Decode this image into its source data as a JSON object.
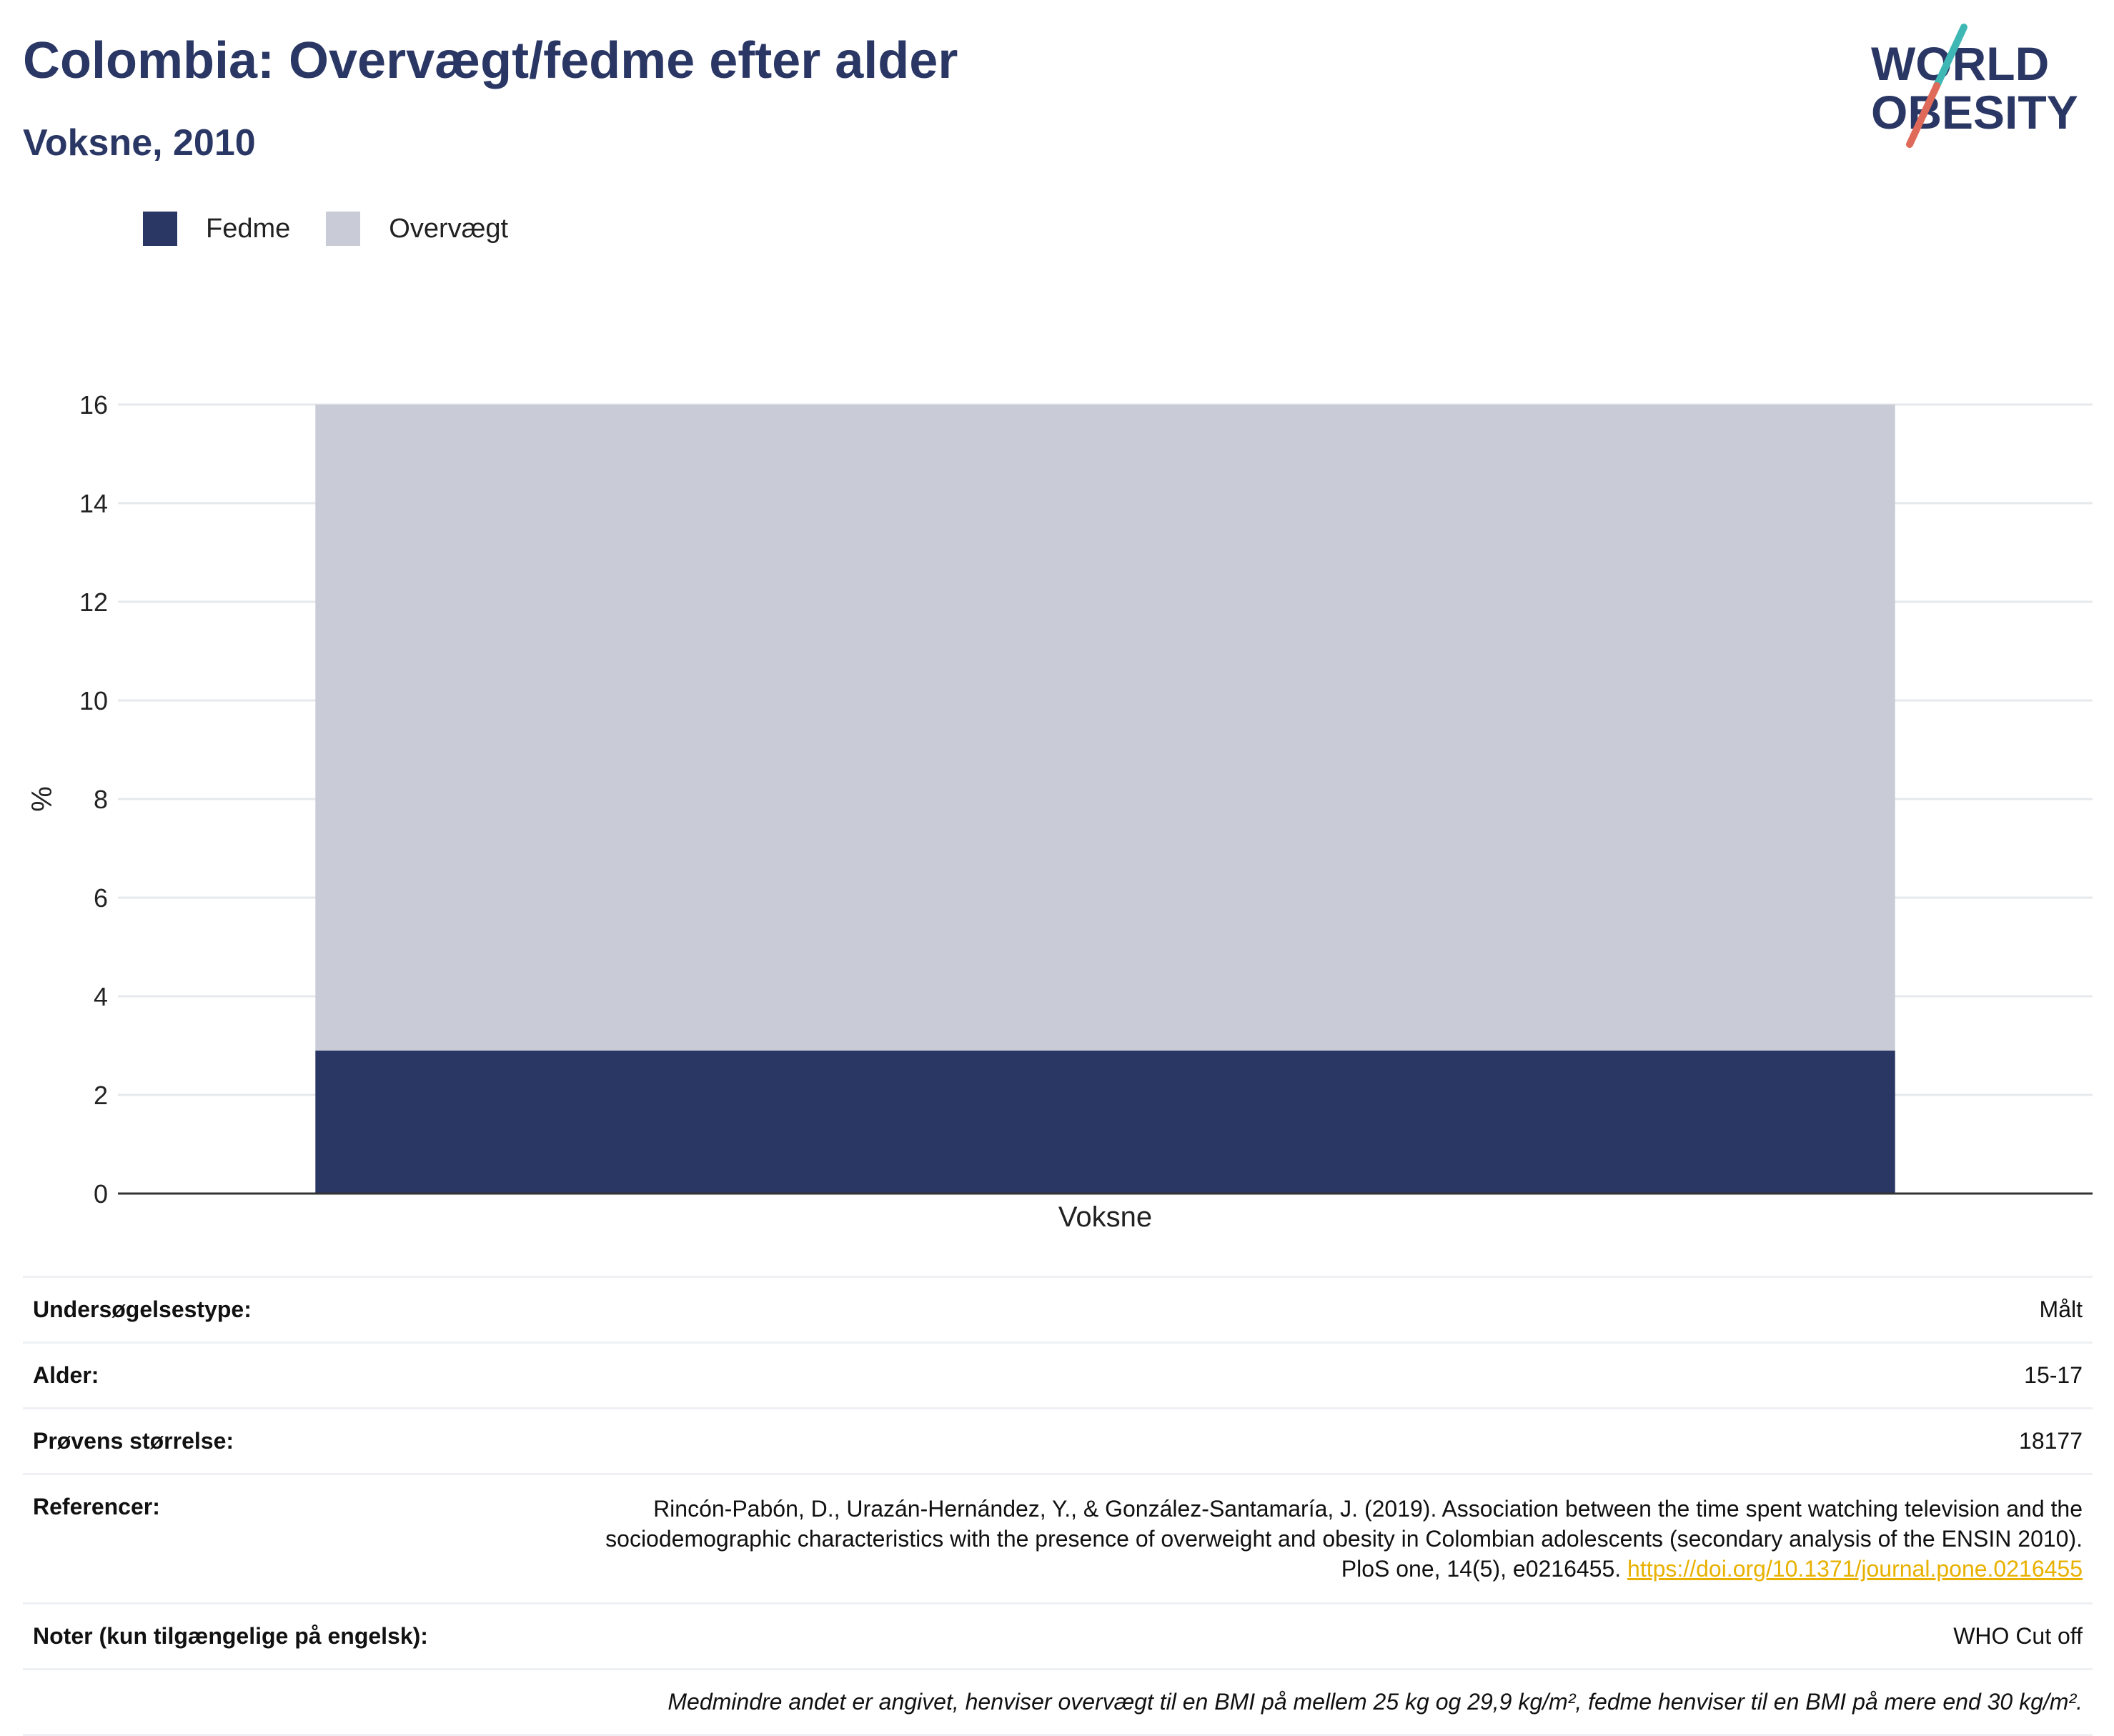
{
  "header": {
    "title": "Colombia: Overvægt/fedme efter alder",
    "subtitle": "Voksne, 2010"
  },
  "logo": {
    "line1": "WORLD",
    "line2": "OBESITY",
    "colors": {
      "text": "#2a3764",
      "slash_top": "#3fb8b5",
      "slash_bottom": "#e06a5a"
    }
  },
  "legend": {
    "items": [
      {
        "label": "Fedme",
        "color": "#2a3764"
      },
      {
        "label": "Overvægt",
        "color": "#c9ccd7"
      }
    ]
  },
  "chart_data": {
    "type": "bar",
    "stacked": true,
    "categories": [
      "Voksne"
    ],
    "series": [
      {
        "name": "Fedme",
        "values": [
          2.9
        ],
        "color": "#2a3764"
      },
      {
        "name": "Overvægt",
        "values": [
          13.1
        ],
        "color": "#c9ccd7"
      }
    ],
    "xlabel": "",
    "ylabel": "%",
    "ylim": [
      0,
      16
    ],
    "yticks": [
      0,
      2,
      4,
      6,
      8,
      10,
      12,
      14,
      16
    ],
    "grid": true,
    "legend_position": "top-left"
  },
  "info": {
    "survey_type": {
      "label": "Undersøgelsestype:",
      "value": "Målt"
    },
    "age": {
      "label": "Alder:",
      "value": "15-17"
    },
    "sample_size": {
      "label": "Prøvens størrelse:",
      "value": "18177"
    },
    "references": {
      "label": "Referencer:",
      "text": "Rincón-Pabón, D., Urazán-Hernández, Y., & González-Santamaría, J. (2019). Association between the time spent watching television and the sociodemographic characteristics with the presence of overweight and obesity in Colombian adolescents (secondary analysis of the ENSIN 2010). PloS one, 14(5), e0216455.",
      "link": "https://doi.org/10.1371/journal.pone.0216455"
    },
    "notes": {
      "label": "Noter (kun tilgængelige på engelsk):",
      "value": "WHO Cut off"
    },
    "footnote": "Medmindre andet er angivet, henviser overvægt til en BMI på mellem 25 kg og 29,9 kg/m², fedme henviser til en BMI på mere end 30 kg/m²."
  }
}
